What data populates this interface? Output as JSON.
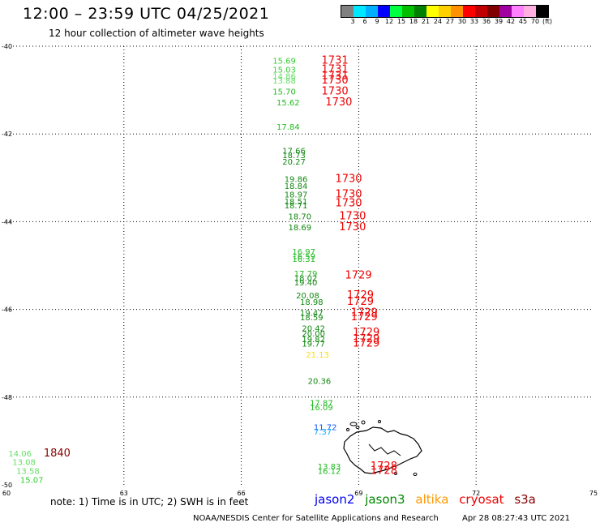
{
  "header": {
    "title": "12:00 – 23:59 UTC 04/25/2021",
    "subtitle": "12 hour collection of altimeter wave heights"
  },
  "legend": {
    "colors": [
      "#808080",
      "#00e8ff",
      "#00b0ff",
      "#0000ff",
      "#00ff40",
      "#00c000",
      "#008000",
      "#ffff00",
      "#ffd000",
      "#ff9000",
      "#ff0000",
      "#c00000",
      "#800000",
      "#a000a0",
      "#ff80ff",
      "#ffb0e0",
      "#000000"
    ],
    "labels": [
      "3",
      "6",
      "9",
      "12",
      "15",
      "18",
      "21",
      "24",
      "27",
      "30",
      "33",
      "36",
      "39",
      "42",
      "45",
      "70",
      "(ft)"
    ]
  },
  "map_data": {
    "x_range": [
      60,
      75
    ],
    "y_range": [
      -50,
      -40
    ],
    "x_ticks": [
      "60",
      "63",
      "66",
      "69",
      "72",
      "75"
    ],
    "y_ticks": [
      "-40",
      "-42",
      "-44",
      "-46",
      "-48",
      "-50"
    ],
    "swh_labels": [
      {
        "lon": 66.8,
        "lat": -40.4,
        "text": "15.69",
        "color": "#33cc33"
      },
      {
        "lon": 66.8,
        "lat": -40.6,
        "text": "15.03",
        "color": "#33cc33"
      },
      {
        "lon": 66.8,
        "lat": -40.75,
        "text": "14.86",
        "color": "#66dd66"
      },
      {
        "lon": 66.8,
        "lat": -40.85,
        "text": "13.88",
        "color": "#66dd66"
      },
      {
        "lon": 66.8,
        "lat": -41.1,
        "text": "15.70",
        "color": "#22bb22"
      },
      {
        "lon": 66.9,
        "lat": -41.35,
        "text": "15.62",
        "color": "#22bb22"
      },
      {
        "lon": 66.9,
        "lat": -41.9,
        "text": "17.84",
        "color": "#22bb22"
      },
      {
        "lon": 67.05,
        "lat": -42.45,
        "text": "17.66",
        "color": "#118811"
      },
      {
        "lon": 67.05,
        "lat": -42.55,
        "text": "18.73",
        "color": "#118811"
      },
      {
        "lon": 67.05,
        "lat": -42.7,
        "text": "20.27",
        "color": "#118811"
      },
      {
        "lon": 67.1,
        "lat": -43.1,
        "text": "19.86",
        "color": "#118811"
      },
      {
        "lon": 67.1,
        "lat": -43.25,
        "text": "18.84",
        "color": "#118811"
      },
      {
        "lon": 67.1,
        "lat": -43.45,
        "text": "18.97",
        "color": "#118811"
      },
      {
        "lon": 67.1,
        "lat": -43.6,
        "text": "18.51",
        "color": "#118811"
      },
      {
        "lon": 67.1,
        "lat": -43.7,
        "text": "18.71",
        "color": "#118811"
      },
      {
        "lon": 67.2,
        "lat": -43.95,
        "text": "18.70",
        "color": "#118811"
      },
      {
        "lon": 67.2,
        "lat": -44.2,
        "text": "18.69",
        "color": "#118811"
      },
      {
        "lon": 67.3,
        "lat": -44.75,
        "text": "16.97",
        "color": "#22bb22"
      },
      {
        "lon": 67.3,
        "lat": -44.85,
        "text": "16.59",
        "color": "#22bb22"
      },
      {
        "lon": 67.3,
        "lat": -44.92,
        "text": "16.31",
        "color": "#22bb22"
      },
      {
        "lon": 67.35,
        "lat": -45.25,
        "text": "17.79",
        "color": "#22bb22"
      },
      {
        "lon": 67.35,
        "lat": -45.35,
        "text": "18.02",
        "color": "#118811"
      },
      {
        "lon": 67.35,
        "lat": -45.45,
        "text": "19.40",
        "color": "#118811"
      },
      {
        "lon": 67.4,
        "lat": -45.75,
        "text": "20.08",
        "color": "#118811"
      },
      {
        "lon": 67.5,
        "lat": -45.9,
        "text": "18.98",
        "color": "#118811"
      },
      {
        "lon": 67.5,
        "lat": -46.15,
        "text": "19.47",
        "color": "#118811"
      },
      {
        "lon": 67.5,
        "lat": -46.25,
        "text": "18.59",
        "color": "#118811"
      },
      {
        "lon": 67.55,
        "lat": -46.5,
        "text": "20.42",
        "color": "#118811"
      },
      {
        "lon": 67.55,
        "lat": -46.62,
        "text": "20.00",
        "color": "#118811"
      },
      {
        "lon": 67.55,
        "lat": -46.75,
        "text": "19.82",
        "color": "#118811"
      },
      {
        "lon": 67.55,
        "lat": -46.85,
        "text": "19.77",
        "color": "#118811"
      },
      {
        "lon": 67.65,
        "lat": -47.1,
        "text": "21.13",
        "color": "#ffdd00"
      },
      {
        "lon": 67.7,
        "lat": -47.7,
        "text": "20.36",
        "color": "#118811"
      },
      {
        "lon": 67.75,
        "lat": -48.2,
        "text": "17.87",
        "color": "#22bb22"
      },
      {
        "lon": 67.75,
        "lat": -48.3,
        "text": "16.09",
        "color": "#22bb22"
      },
      {
        "lon": 67.85,
        "lat": -48.75,
        "text": "11.72",
        "color": "#1155ff"
      },
      {
        "lon": 67.85,
        "lat": -48.85,
        "text": "7.37",
        "color": "#00aaff"
      },
      {
        "lon": 67.95,
        "lat": -49.65,
        "text": "13.83",
        "color": "#22bb22"
      },
      {
        "lon": 67.95,
        "lat": -49.75,
        "text": "16.12",
        "color": "#22bb22"
      },
      {
        "lon": 60.05,
        "lat": -49.35,
        "text": "14.06",
        "color": "#66dd66"
      },
      {
        "lon": 60.15,
        "lat": -49.55,
        "text": "13.08",
        "color": "#66dd66"
      },
      {
        "lon": 60.25,
        "lat": -49.75,
        "text": "13.58",
        "color": "#66dd66"
      },
      {
        "lon": 60.35,
        "lat": -49.95,
        "text": "15.07",
        "color": "#33cc33"
      }
    ],
    "time_labels": [
      {
        "lon": 68.05,
        "lat": -40.4,
        "text": "1731",
        "color": "#ee0000"
      },
      {
        "lon": 68.05,
        "lat": -40.6,
        "text": "1731",
        "color": "#ee0000"
      },
      {
        "lon": 68.05,
        "lat": -40.75,
        "text": "1731",
        "color": "#ee0000"
      },
      {
        "lon": 68.05,
        "lat": -40.85,
        "text": "1730",
        "color": "#ee0000"
      },
      {
        "lon": 68.05,
        "lat": -41.1,
        "text": "1730",
        "color": "#ee0000"
      },
      {
        "lon": 68.15,
        "lat": -41.35,
        "text": "1730",
        "color": "#ee0000"
      },
      {
        "lon": 68.4,
        "lat": -43.1,
        "text": "1730",
        "color": "#ee0000"
      },
      {
        "lon": 68.4,
        "lat": -43.45,
        "text": "1730",
        "color": "#ee0000"
      },
      {
        "lon": 68.4,
        "lat": -43.65,
        "text": "1730",
        "color": "#ee0000"
      },
      {
        "lon": 68.5,
        "lat": -43.95,
        "text": "1730",
        "color": "#ee0000"
      },
      {
        "lon": 68.5,
        "lat": -44.2,
        "text": "1730",
        "color": "#ee0000"
      },
      {
        "lon": 68.65,
        "lat": -45.3,
        "text": "1729",
        "color": "#ee0000"
      },
      {
        "lon": 68.7,
        "lat": -45.75,
        "text": "1729",
        "color": "#ee0000"
      },
      {
        "lon": 68.7,
        "lat": -45.9,
        "text": "1729",
        "color": "#ee0000"
      },
      {
        "lon": 68.8,
        "lat": -46.15,
        "text": "1729",
        "color": "#ee0000"
      },
      {
        "lon": 68.8,
        "lat": -46.25,
        "text": "1729",
        "color": "#ee0000"
      },
      {
        "lon": 68.85,
        "lat": -46.6,
        "text": "1729",
        "color": "#ee0000"
      },
      {
        "lon": 68.85,
        "lat": -46.75,
        "text": "1729",
        "color": "#ee0000"
      },
      {
        "lon": 68.85,
        "lat": -46.85,
        "text": "1729",
        "color": "#ee0000"
      },
      {
        "lon": 69.3,
        "lat": -49.65,
        "text": "1728",
        "color": "#ee0000"
      },
      {
        "lon": 69.3,
        "lat": -49.75,
        "text": "1728",
        "color": "#ee0000"
      },
      {
        "lon": 60.95,
        "lat": -49.35,
        "text": "1840",
        "color": "#880000"
      }
    ]
  },
  "footer": {
    "note": "note: 1) Time is in UTC; 2) SWH is in feet",
    "satellites": [
      {
        "name": "jason2",
        "color": "#0000ee"
      },
      {
        "name": "jason3",
        "color": "#008800"
      },
      {
        "name": "altika",
        "color": "#ff9900"
      },
      {
        "name": "cryosat",
        "color": "#ee0000"
      },
      {
        "name": "s3a",
        "color": "#880000"
      }
    ],
    "credit": "NOAA/NESDIS Center for Satellite Applications and Research",
    "timestamp": "Apr 28 08:27:43 UTC 2021"
  }
}
